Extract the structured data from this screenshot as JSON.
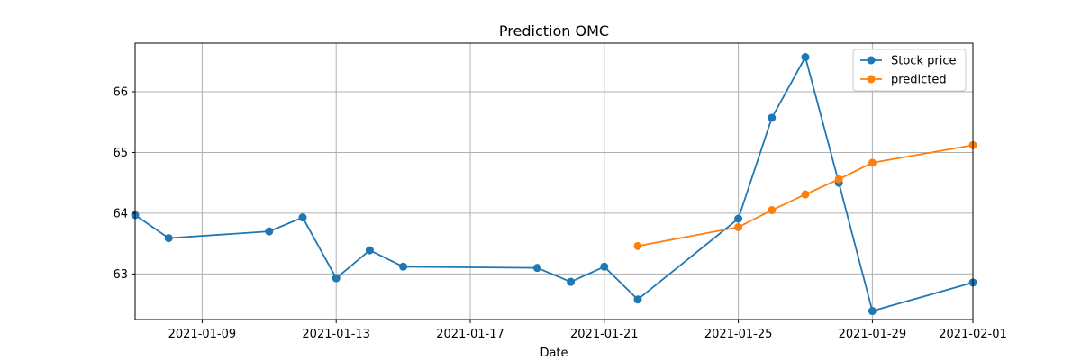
{
  "chart_data": {
    "type": "line",
    "title": "Prediction OMC",
    "xlabel": "Date",
    "ylabel": "",
    "xlim": [
      "2021-01-07",
      "2021-02-01"
    ],
    "ylim": [
      62.25,
      66.8
    ],
    "x_ticks": [
      "2021-01-09",
      "2021-01-13",
      "2021-01-17",
      "2021-01-21",
      "2021-01-25",
      "2021-01-29",
      "2021-02-01"
    ],
    "y_ticks": [
      63,
      64,
      65,
      66
    ],
    "grid": true,
    "legend_position": "top-right",
    "series": [
      {
        "name": "Stock price",
        "color": "#1f77b4",
        "points": [
          [
            "2021-01-07",
            63.97
          ],
          [
            "2021-01-08",
            63.59
          ],
          [
            "2021-01-11",
            63.7
          ],
          [
            "2021-01-12",
            63.93
          ],
          [
            "2021-01-13",
            62.93
          ],
          [
            "2021-01-14",
            63.39
          ],
          [
            "2021-01-15",
            63.12
          ],
          [
            "2021-01-19",
            63.1
          ],
          [
            "2021-01-20",
            62.87
          ],
          [
            "2021-01-21",
            63.12
          ],
          [
            "2021-01-22",
            62.58
          ],
          [
            "2021-01-25",
            63.91
          ],
          [
            "2021-01-26",
            65.57
          ],
          [
            "2021-01-27",
            66.57
          ],
          [
            "2021-01-28",
            64.5
          ],
          [
            "2021-01-29",
            62.39
          ],
          [
            "2021-02-01",
            62.86
          ]
        ]
      },
      {
        "name": "predicted",
        "color": "#ff7f0e",
        "points": [
          [
            "2021-01-22",
            63.46
          ],
          [
            "2021-01-25",
            63.77
          ],
          [
            "2021-01-26",
            64.05
          ],
          [
            "2021-01-27",
            64.31
          ],
          [
            "2021-01-28",
            64.56
          ],
          [
            "2021-01-29",
            64.83
          ],
          [
            "2021-02-01",
            65.12
          ]
        ]
      }
    ]
  }
}
